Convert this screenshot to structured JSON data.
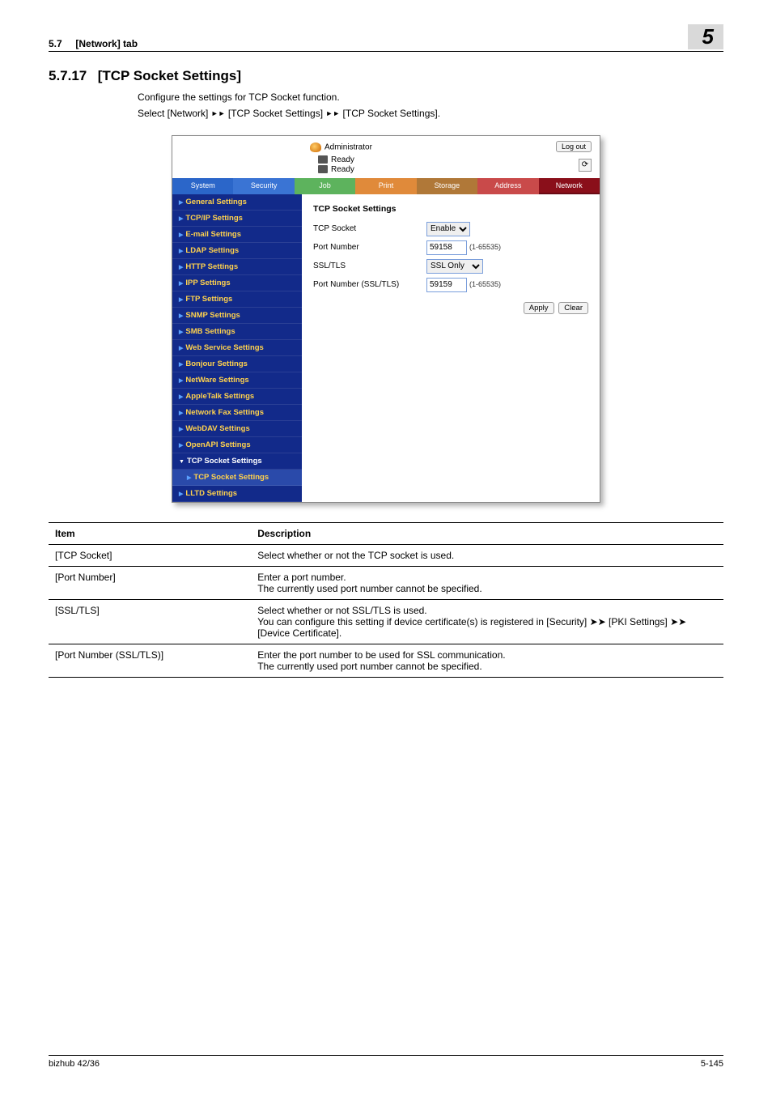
{
  "header": {
    "section_ref": "5.7",
    "section_name": "[Network] tab",
    "chapter_number": "5"
  },
  "section": {
    "number": "5.7.17",
    "title": "[TCP Socket Settings]",
    "intro1": "Configure the settings for TCP Socket function.",
    "intro2_a": "Select [Network] ",
    "intro2_b": " [TCP Socket Settings] ",
    "intro2_c": " [TCP Socket Settings]."
  },
  "screenshot": {
    "administrator": "Administrator",
    "ready1": "Ready",
    "ready2": "Ready",
    "logout": "Log out",
    "tabs": {
      "system": "System",
      "security": "Security",
      "job": "Job",
      "print": "Print",
      "storage": "Storage",
      "address": "Address",
      "network": "Network"
    },
    "sidebar": {
      "general": "General Settings",
      "tcpip": "TCP/IP Settings",
      "email": "E-mail Settings",
      "ldap": "LDAP Settings",
      "http": "HTTP Settings",
      "ipp": "IPP Settings",
      "ftp": "FTP Settings",
      "snmp": "SNMP Settings",
      "smb": "SMB Settings",
      "webservice": "Web Service Settings",
      "bonjour": "Bonjour Settings",
      "netware": "NetWare Settings",
      "appletalk": "AppleTalk Settings",
      "netfax": "Network Fax Settings",
      "webdav": "WebDAV Settings",
      "openapi": "OpenAPI Settings",
      "tcpsocket_parent": "TCP Socket Settings",
      "tcpsocket_child": "TCP Socket Settings",
      "lltd": "LLTD Settings"
    },
    "form": {
      "heading": "TCP Socket Settings",
      "tcp_socket_lbl": "TCP Socket",
      "tcp_socket_val": "Enable",
      "port_lbl": "Port Number",
      "port_val": "59158",
      "port_range": "(1-65535)",
      "ssltls_lbl": "SSL/TLS",
      "ssltls_val": "SSL Only",
      "portssl_lbl": "Port Number (SSL/TLS)",
      "portssl_val": "59159",
      "portssl_range": "(1-65535)",
      "apply": "Apply",
      "clear": "Clear"
    }
  },
  "table": {
    "headers": {
      "item": "Item",
      "desc": "Description"
    },
    "rows": [
      {
        "item": "[TCP Socket]",
        "desc": "Select whether or not the TCP socket is used."
      },
      {
        "item": "[Port Number]",
        "desc": "Enter a port number.\nThe currently used port number cannot be specified."
      },
      {
        "item": "[SSL/TLS]",
        "desc": "Select whether or not SSL/TLS is used.\nYou can configure this setting if device certificate(s) is registered in [Security] ➤➤ [PKI Settings] ➤➤ [Device Certificate]."
      },
      {
        "item": "[Port Number (SSL/TLS)]",
        "desc": "Enter the port number to be used for SSL communication.\nThe currently used port number cannot be specified."
      }
    ]
  },
  "footer": {
    "left": "bizhub 42/36",
    "right": "5-145"
  }
}
